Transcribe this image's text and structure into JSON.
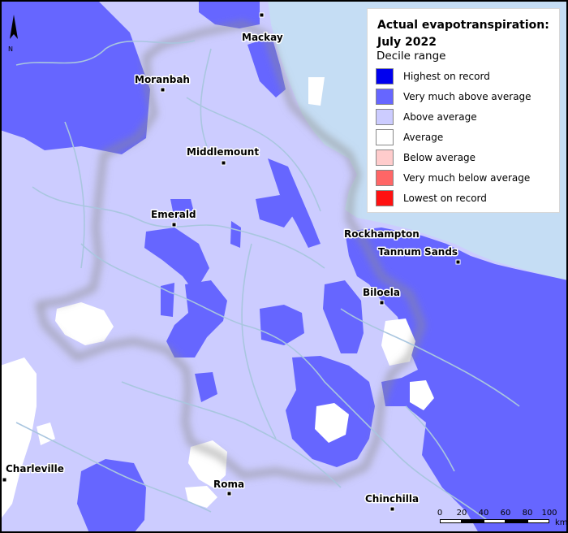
{
  "legend": {
    "title_line1": "Actual evapotranspiration:",
    "title_line2": "July 2022",
    "subtitle": "Decile range",
    "items": [
      {
        "label": "Highest on record",
        "color": "#0000ee"
      },
      {
        "label": "Very much above average",
        "color": "#6666ff"
      },
      {
        "label": "Above average",
        "color": "#ccccff"
      },
      {
        "label": "Average",
        "color": "#ffffff"
      },
      {
        "label": "Below average",
        "color": "#ffcccc"
      },
      {
        "label": "Very much below average",
        "color": "#ff6666"
      },
      {
        "label": "Lowest on record",
        "color": "#ff1111"
      }
    ]
  },
  "towns": [
    {
      "name": "Mackay"
    },
    {
      "name": "Moranbah"
    },
    {
      "name": "Middlemount"
    },
    {
      "name": "Emerald"
    },
    {
      "name": "Rockhampton"
    },
    {
      "name": "Tannum Sands"
    },
    {
      "name": "Biloela"
    },
    {
      "name": "Charleville"
    },
    {
      "name": "Roma"
    },
    {
      "name": "Chinchilla"
    }
  ],
  "north_arrow": {
    "label": "N"
  },
  "scale_bar": {
    "ticks": [
      "0",
      "20",
      "40",
      "60",
      "80",
      "100"
    ],
    "unit": "km"
  },
  "colors": {
    "ocean": "#c5ddf4",
    "rivers": "#a9c6df",
    "basin_shadow": "#8c8c8c"
  }
}
